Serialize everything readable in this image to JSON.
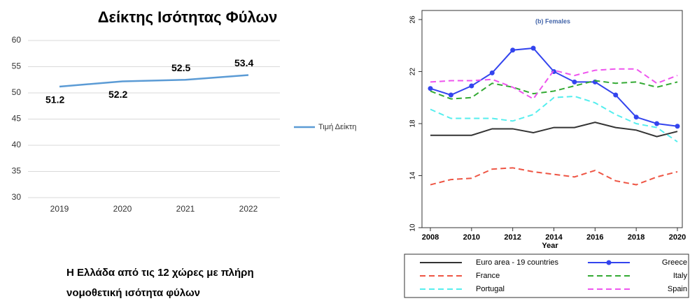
{
  "chart_data": [
    {
      "type": "line",
      "title": "Δείκτης Ισότητας Φύλων",
      "categories": [
        "2019",
        "2020",
        "2021",
        "2022"
      ],
      "series": [
        {
          "name": "Τιμή Δείκτη",
          "color": "#5b9bd5",
          "values": [
            51.2,
            52.2,
            52.5,
            53.4
          ]
        }
      ],
      "ylim": [
        30,
        60
      ],
      "yticks": [
        30,
        35,
        40,
        45,
        50,
        55,
        60
      ],
      "grid": true,
      "legend": "right",
      "data_labels": true
    },
    {
      "type": "line",
      "subtitle": "(b) Females",
      "x_label": "Year",
      "x": [
        2008,
        2009,
        2010,
        2011,
        2012,
        2013,
        2014,
        2015,
        2016,
        2017,
        2018,
        2019,
        2020
      ],
      "xlim": [
        2008,
        2020
      ],
      "xticks": [
        2008,
        2010,
        2012,
        2014,
        2016,
        2018,
        2020
      ],
      "ylim": [
        10,
        26
      ],
      "yticks": [
        10,
        14,
        18,
        22,
        26
      ],
      "grid": false,
      "legend": "bottom",
      "series": [
        {
          "name": "Euro area - 19 countries",
          "color": "#333333",
          "dashed": false,
          "markers": false,
          "values": [
            17.1,
            17.1,
            17.1,
            17.6,
            17.6,
            17.3,
            17.7,
            17.7,
            18.1,
            17.7,
            17.5,
            17.0,
            17.4
          ]
        },
        {
          "name": "Greece",
          "color": "#3344ee",
          "dashed": false,
          "markers": true,
          "values": [
            20.7,
            20.2,
            20.9,
            21.9,
            23.65,
            23.8,
            22.0,
            21.2,
            21.2,
            20.2,
            18.5,
            18.0,
            17.8
          ]
        },
        {
          "name": "France",
          "color": "#ee5544",
          "dashed": true,
          "markers": false,
          "values": [
            13.3,
            13.7,
            13.8,
            14.5,
            14.6,
            14.3,
            14.1,
            13.9,
            14.4,
            13.6,
            13.3,
            13.9,
            14.3
          ]
        },
        {
          "name": "Italy",
          "color": "#33aa33",
          "dashed": true,
          "markers": false,
          "values": [
            20.5,
            19.9,
            20.0,
            21.1,
            20.8,
            20.3,
            20.5,
            20.9,
            21.3,
            21.1,
            21.2,
            20.8,
            21.2
          ]
        },
        {
          "name": "Portugal",
          "color": "#55eeee",
          "dashed": true,
          "markers": false,
          "values": [
            19.1,
            18.4,
            18.4,
            18.4,
            18.2,
            18.7,
            20.0,
            20.1,
            19.6,
            18.7,
            18.0,
            17.7,
            16.6
          ]
        },
        {
          "name": "Spain",
          "color": "#ee55ee",
          "dashed": true,
          "markers": false,
          "values": [
            21.2,
            21.3,
            21.3,
            21.4,
            20.8,
            19.9,
            22.1,
            21.7,
            22.1,
            22.2,
            22.2,
            21.1,
            21.7
          ]
        }
      ]
    }
  ],
  "caption": {
    "lines": [
      "Η Ελλάδα από τις 12 χώρες με πλήρη",
      "νομοθετική ισότητα φύλων"
    ]
  }
}
